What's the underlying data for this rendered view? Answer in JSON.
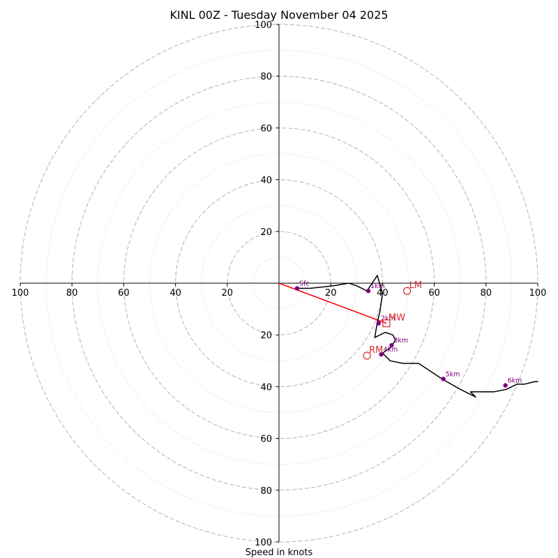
{
  "chart_data": {
    "type": "hodograph",
    "title": "KINL 00Z - Tuesday November 04 2025",
    "xlabel": "Speed in knots",
    "units": "knots",
    "axis_range": [
      -100,
      100
    ],
    "rings": {
      "major_dashed": [
        20,
        40,
        60,
        80,
        100
      ],
      "minor_dotted": [
        10,
        30,
        50,
        70,
        90
      ]
    },
    "tick_labels": {
      "x_left": [
        "100",
        "80",
        "60",
        "40",
        "20"
      ],
      "x_left_values": [
        -100,
        -80,
        -60,
        -40,
        -20
      ],
      "x_right": [
        "20",
        "40",
        "60",
        "80",
        "100"
      ],
      "x_right_values": [
        20,
        40,
        60,
        80,
        100
      ],
      "y_top": [
        "20",
        "40",
        "60",
        "80",
        "100"
      ],
      "y_top_values": [
        20,
        40,
        60,
        80,
        100
      ],
      "y_bottom": [
        "20",
        "40",
        "60",
        "80",
        "100"
      ],
      "y_bottom_values": [
        -20,
        -40,
        -60,
        -80,
        -100
      ]
    },
    "trace": {
      "name": "hodograph",
      "color": "#000000",
      "u": [
        7,
        12,
        21,
        27,
        30,
        34,
        38,
        40,
        39,
        38,
        37,
        41,
        44,
        45,
        43,
        40,
        43,
        48,
        53,
        54,
        60,
        63,
        70,
        76,
        74,
        80,
        83,
        88,
        92,
        95,
        99,
        100,
        99
      ],
      "v": [
        -2,
        -2,
        -1,
        0,
        -1,
        -3,
        3,
        -4,
        -11,
        -15,
        -21,
        -19,
        -20,
        -22,
        -25,
        -27,
        -30,
        -31,
        -31,
        -31,
        -35,
        -37,
        -41,
        -44,
        -42,
        -42,
        -42,
        -41,
        -39,
        -39,
        -38,
        -38,
        -38
      ]
    },
    "height_markers": [
      {
        "label": "Sfc",
        "u": 7,
        "v": -2
      },
      {
        "label": "1km",
        "u": 34.5,
        "v": -3
      },
      {
        "label": "2km",
        "u": 38.5,
        "v": -15.5
      },
      {
        "label": "3km",
        "u": 43.5,
        "v": -24
      },
      {
        "label": "4km",
        "u": 39.5,
        "v": -27.5
      },
      {
        "label": "5km",
        "u": 63.5,
        "v": -37
      },
      {
        "label": "6km",
        "u": 87.5,
        "v": -39.5
      }
    ],
    "storm_motion": [
      {
        "label": "LM",
        "u": 49.5,
        "v": -3,
        "marker": "circle"
      },
      {
        "label": "RM",
        "u": 34,
        "v": -28,
        "marker": "circle"
      },
      {
        "label": "MW",
        "u": 41.5,
        "v": -15.5,
        "marker": "square"
      }
    ],
    "shear_vector": {
      "from_u": 0,
      "from_v": 0,
      "to_u": 41.5,
      "to_v": -15.5,
      "color": "#ff0000"
    },
    "colors": {
      "ring_major": "#bdbdbd",
      "ring_minor": "#d6d6d6",
      "axis": "#000000",
      "height_marker": "#800080",
      "storm_marker": "#d62728",
      "shear": "#ff0000",
      "trace": "#000000"
    }
  }
}
